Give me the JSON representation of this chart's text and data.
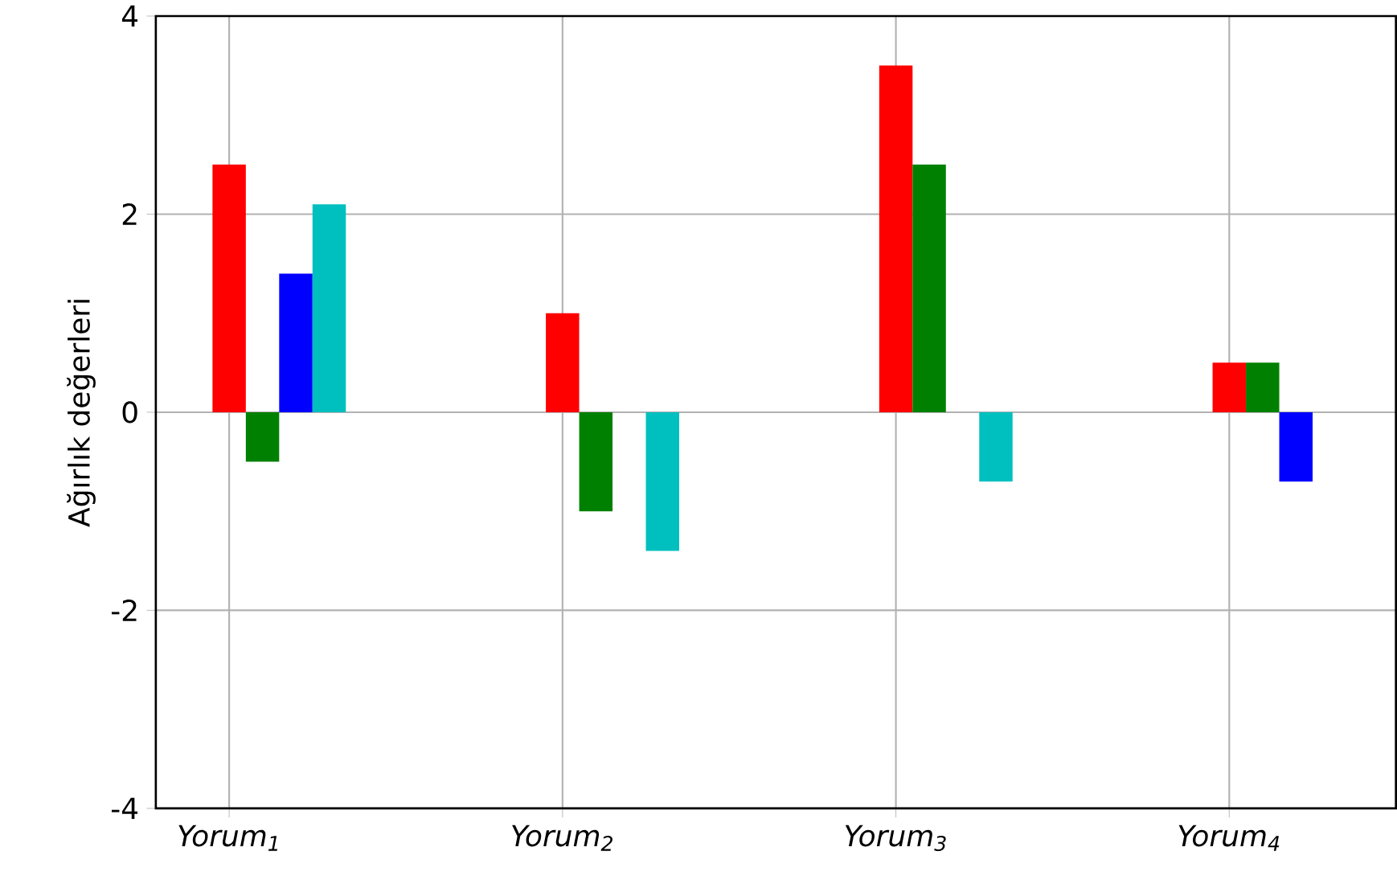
{
  "chart_data": {
    "type": "bar",
    "ylabel": "Ağırlık değerleri",
    "categories": [
      "Yorum$_{1}$",
      "Yorum$_{2}$",
      "Yorum$_{3}$",
      "Yorum$_{4}$"
    ],
    "series": [
      {
        "color": "#ff0000",
        "values": [
          2.5,
          1.0,
          3.5,
          0.5
        ]
      },
      {
        "color": "#008000",
        "values": [
          -0.5,
          -1.0,
          2.5,
          0.5
        ]
      },
      {
        "color": "#0000ff",
        "values": [
          1.4,
          null,
          null,
          -0.7
        ]
      },
      {
        "color": "#00bfbf",
        "values": [
          2.1,
          -1.4,
          -0.7,
          null
        ]
      }
    ],
    "ylim": [
      -4,
      4
    ],
    "yticks": [
      -4,
      -2,
      0,
      2,
      4
    ],
    "grid": true
  }
}
